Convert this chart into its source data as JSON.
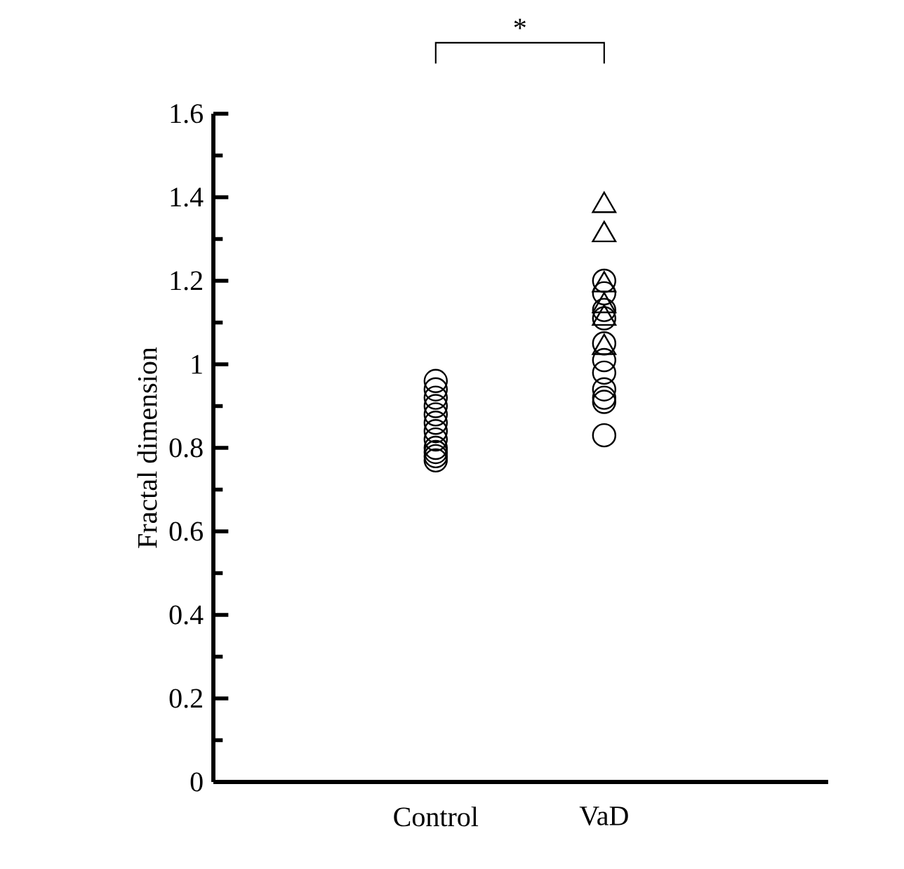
{
  "chart_data": {
    "type": "scatter",
    "ylabel": "Fractal dimension",
    "categories": [
      "Control",
      "VaD"
    ],
    "ylim": [
      0,
      1.6
    ],
    "yticks": [
      0,
      0.2,
      0.4,
      0.6,
      0.8,
      1,
      1.2,
      1.4,
      1.6
    ],
    "grid": false,
    "annotations": [
      "*"
    ],
    "series": [
      {
        "marker": "circle",
        "color": "#000000",
        "x": [
          "Control",
          "Control",
          "Control",
          "Control",
          "Control",
          "Control",
          "Control",
          "Control",
          "Control",
          "Control",
          "Control",
          "Control",
          "VaD",
          "VaD",
          "VaD",
          "VaD",
          "VaD",
          "VaD",
          "VaD",
          "VaD",
          "VaD",
          "VaD",
          "VaD"
        ],
        "values": [
          0.96,
          0.94,
          0.92,
          0.9,
          0.88,
          0.86,
          0.84,
          0.82,
          0.8,
          0.79,
          0.78,
          0.77,
          1.2,
          1.17,
          1.13,
          1.11,
          1.05,
          1.01,
          0.98,
          0.94,
          0.92,
          0.91,
          0.83
        ]
      },
      {
        "marker": "triangle",
        "color": "#000000",
        "x": [
          "VaD",
          "VaD",
          "VaD",
          "VaD",
          "VaD",
          "VaD"
        ],
        "values": [
          1.38,
          1.31,
          1.19,
          1.14,
          1.11,
          1.04
        ]
      }
    ]
  }
}
